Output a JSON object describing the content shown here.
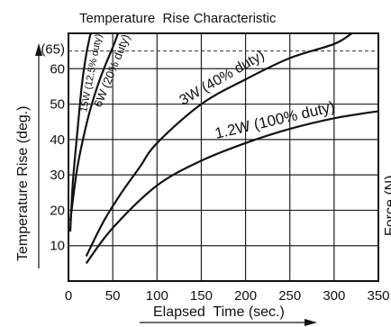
{
  "chart_data": {
    "type": "line",
    "title": "Temperature  Rise Characteristic",
    "xlabel": "Elapsed  Time (sec.)",
    "ylabel": "Temperature Rise (deg.)",
    "right_label_fragment": "Force (N)",
    "xlim": [
      0,
      350
    ],
    "ylim": [
      0,
      70
    ],
    "x_ticks": [
      0,
      50,
      100,
      150,
      200,
      250,
      300,
      350
    ],
    "y_ticks": [
      10,
      20,
      30,
      40,
      50,
      60
    ],
    "y_tick_labels": [
      "10",
      "20",
      "30",
      "40",
      "50",
      "60"
    ],
    "reference_line": {
      "y": 65,
      "label": "(65)"
    },
    "grid": true,
    "series": [
      {
        "name": "15W (12.5% duty)",
        "points": [
          [
            2,
            14
          ],
          [
            5,
            28
          ],
          [
            10,
            42
          ],
          [
            15,
            55
          ],
          [
            20,
            64
          ],
          [
            25,
            70
          ]
        ]
      },
      {
        "name": "6W (20% duty)",
        "points": [
          [
            2,
            17
          ],
          [
            10,
            32
          ],
          [
            20,
            44
          ],
          [
            30,
            53
          ],
          [
            40,
            60
          ],
          [
            50,
            66
          ],
          [
            56,
            70
          ]
        ]
      },
      {
        "name": "3W (40% duty)",
        "points": [
          [
            20,
            7
          ],
          [
            40,
            17
          ],
          [
            60,
            25
          ],
          [
            80,
            32
          ],
          [
            100,
            39
          ],
          [
            150,
            50
          ],
          [
            200,
            57
          ],
          [
            250,
            63
          ],
          [
            300,
            67
          ],
          [
            320,
            70
          ]
        ]
      },
      {
        "name": "1.2W (100% duty)",
        "points": [
          [
            20,
            5
          ],
          [
            50,
            15
          ],
          [
            100,
            27
          ],
          [
            150,
            34
          ],
          [
            200,
            39
          ],
          [
            250,
            43
          ],
          [
            300,
            46
          ],
          [
            350,
            48
          ]
        ]
      }
    ]
  }
}
